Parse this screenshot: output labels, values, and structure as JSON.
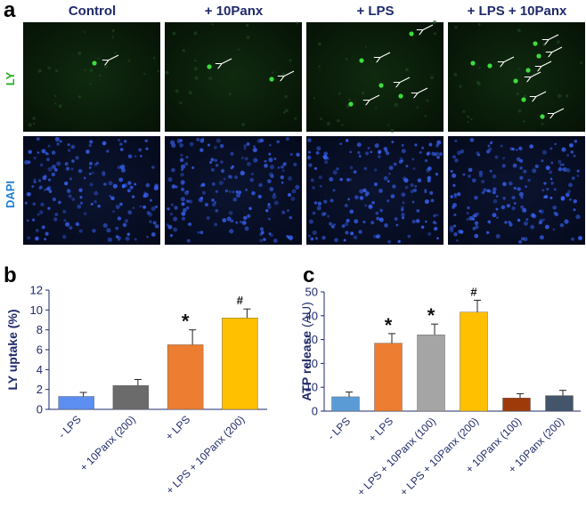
{
  "panel_a": {
    "letter": "a",
    "columns": [
      "Control",
      "+ 10Panx",
      "+ LPS",
      "+ LPS + 10Panx"
    ],
    "row_labels": [
      "LY",
      "DAPI"
    ],
    "colors": {
      "ly_label": "#22b022",
      "dapi_label": "#1f7fd6",
      "header": "#1f2a6b"
    }
  },
  "panel_b": {
    "letter": "b",
    "chart_data": {
      "type": "bar",
      "ylabel": "LY  uptake  (%)",
      "ylim": [
        0,
        12
      ],
      "yticks": [
        0,
        2,
        4,
        6,
        8,
        10,
        12
      ],
      "categories": [
        "- LPS",
        "+ 10Panx (200)",
        "+ LPS",
        "+ LPS + 10Panx (200)"
      ],
      "values": [
        1.3,
        2.4,
        6.5,
        9.2
      ],
      "errors": [
        0.4,
        0.6,
        1.5,
        0.9
      ],
      "colors": [
        "#5b8ef0",
        "#6b6b6b",
        "#ed7d31",
        "#ffc000"
      ],
      "annotations": [
        "",
        "",
        "*",
        "#"
      ]
    }
  },
  "panel_c": {
    "letter": "c",
    "chart_data": {
      "type": "bar",
      "ylabel_main": "ATP release",
      "ylabel_unit": "(AU)",
      "ylim": [
        0,
        50
      ],
      "yticks": [
        0,
        10,
        20,
        30,
        40,
        50
      ],
      "categories": [
        "- LPS",
        "+ LPS",
        "+ LPS + 10Panx (100)",
        "+ LPS + 10Panx (200)",
        "+ 10Panx (100)",
        "+ 10Panx (200)"
      ],
      "values": [
        6,
        28.5,
        32,
        41.5,
        5.5,
        6.5
      ],
      "errors": [
        2,
        4,
        4.5,
        5,
        1.8,
        2.2
      ],
      "colors": [
        "#5b9bd5",
        "#ed7d31",
        "#a5a5a5",
        "#ffc000",
        "#9e3a0a",
        "#44546a"
      ],
      "annotations": [
        "",
        "*",
        "*",
        "#",
        "",
        ""
      ]
    }
  }
}
